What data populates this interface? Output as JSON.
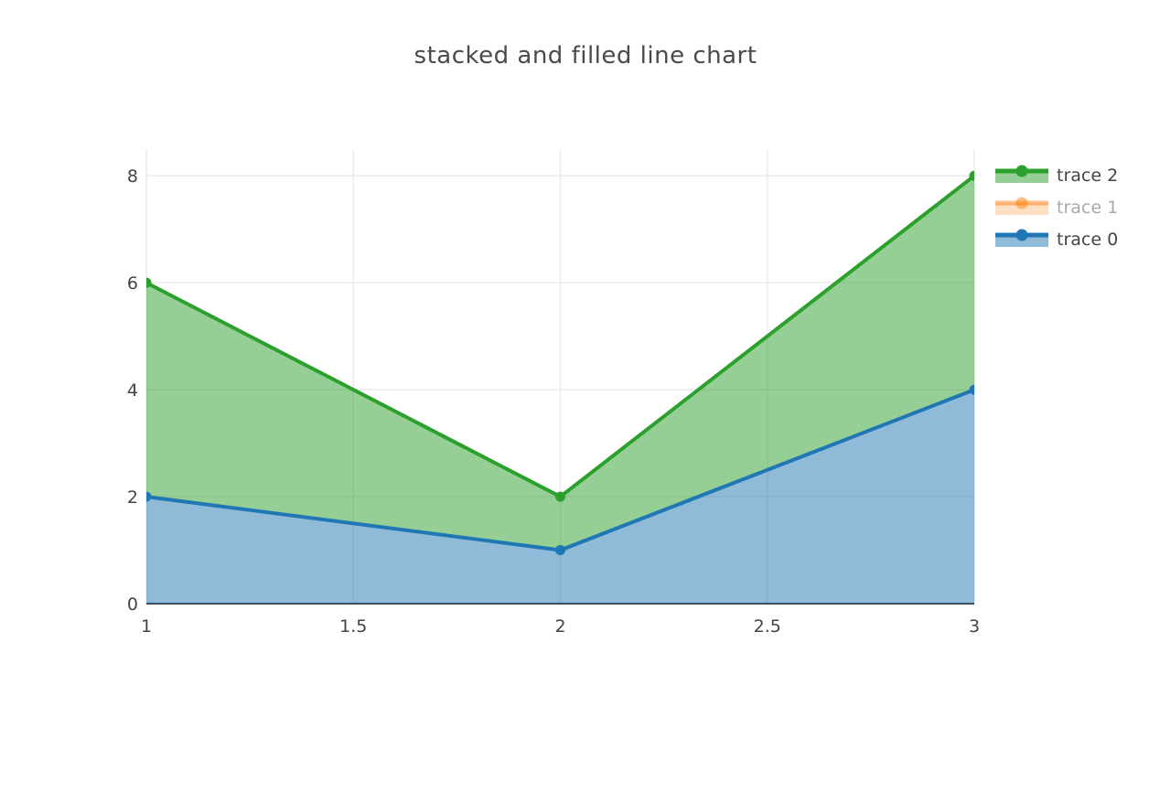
{
  "title": "stacked and filled line chart",
  "legend": {
    "items": [
      {
        "label": "trace 2",
        "color": "#2ca02c",
        "text_color": "#444444",
        "dimmed": false
      },
      {
        "label": "trace 1",
        "color": "#ff7f0e",
        "text_color": "#a9a9a9",
        "dimmed": true
      },
      {
        "label": "trace 0",
        "color": "#1f77b4",
        "text_color": "#444444",
        "dimmed": false
      }
    ]
  },
  "chart_data": {
    "type": "area",
    "title": "stacked and filled line chart",
    "x": [
      1,
      2,
      3
    ],
    "series": [
      {
        "name": "trace 0",
        "values": [
          2,
          1,
          4
        ],
        "color": "#1f77b4",
        "visible": true
      },
      {
        "name": "trace 1",
        "values": [],
        "color": "#ff7f0e",
        "visible": false
      },
      {
        "name": "trace 2",
        "values": [
          6,
          2,
          8
        ],
        "color": "#2ca02c",
        "visible": true
      }
    ],
    "values_are_stacked": true,
    "fill": "tonexty",
    "fill_opacity": 0.5,
    "x_ticks": [
      1,
      1.5,
      2,
      2.5,
      3
    ],
    "y_ticks": [
      0,
      2,
      4,
      6,
      8
    ],
    "xlim": [
      1,
      3
    ],
    "ylim": [
      0,
      8.5
    ],
    "xlabel": "",
    "ylabel": "",
    "grid": true,
    "grid_color": "#ebebeb",
    "zeroline_color": "#444444",
    "tick_color": "#444444",
    "legend_position": "right"
  }
}
